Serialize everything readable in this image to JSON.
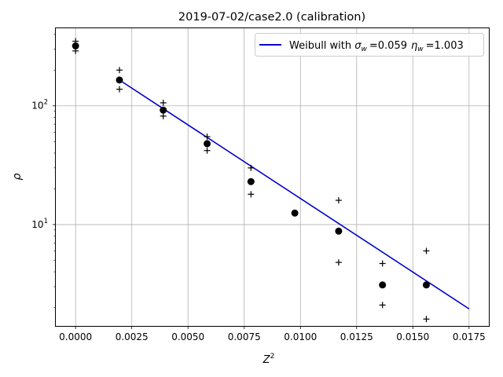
{
  "chart_data": {
    "type": "scatter",
    "title": "2019-07-02/case2.0 (calibration)",
    "xlabel": "Z",
    "xlabel_sup": "2",
    "ylabel": "ρ",
    "xlim": [
      -0.00088,
      0.01838
    ],
    "ylim": [
      1.4,
      450
    ],
    "yscale": "log",
    "grid": true,
    "legend": {
      "placement": "top-right",
      "label_prefix": "Weibull with ",
      "sigma_symbol": "σ",
      "sigma_sub": "w",
      "sigma_value": "=0.059",
      "eta_symbol": "η",
      "eta_sub": "w",
      "eta_value": "=1.003",
      "color": "#0000cc"
    },
    "x_ticks": [
      {
        "value": 0.0,
        "label": "0.0000"
      },
      {
        "value": 0.0025,
        "label": "0.0025"
      },
      {
        "value": 0.005,
        "label": "0.0050"
      },
      {
        "value": 0.0075,
        "label": "0.0075"
      },
      {
        "value": 0.01,
        "label": "0.0100"
      },
      {
        "value": 0.0125,
        "label": "0.0125"
      },
      {
        "value": 0.015,
        "label": "0.0150"
      },
      {
        "value": 0.0175,
        "label": "0.0175"
      }
    ],
    "y_ticks": [
      {
        "value": 10,
        "base": "10",
        "exp": "1"
      },
      {
        "value": 100,
        "base": "10",
        "exp": "2"
      }
    ],
    "series": [
      {
        "kind": "points",
        "marker": "circle",
        "color": "#000000",
        "x": [
          0.0,
          0.00195,
          0.0039,
          0.00585,
          0.0078,
          0.00975,
          0.0117,
          0.01365,
          0.0156
        ],
        "y": [
          320,
          165,
          92,
          48,
          23,
          12.5,
          8.8,
          3.1,
          3.1
        ]
      },
      {
        "kind": "upper",
        "marker": "plus",
        "color": "#000000",
        "x": [
          0.0,
          0.00195,
          0.0039,
          0.00585,
          0.0078,
          0.0117,
          0.01365,
          0.0156
        ],
        "y": [
          350,
          200,
          106,
          55,
          30,
          16,
          4.7,
          6.0
        ]
      },
      {
        "kind": "lower",
        "marker": "plus",
        "color": "#000000",
        "x": [
          0.0,
          0.00195,
          0.0039,
          0.00585,
          0.0078,
          0.0117,
          0.01365,
          0.0156
        ],
        "y": [
          290,
          138,
          82,
          42,
          18,
          4.8,
          2.1,
          1.6
        ]
      },
      {
        "kind": "fit",
        "marker": "line",
        "color": "#0000cc",
        "x": [
          0.00195,
          0.0175
        ],
        "y": [
          165,
          1.95
        ]
      }
    ]
  }
}
